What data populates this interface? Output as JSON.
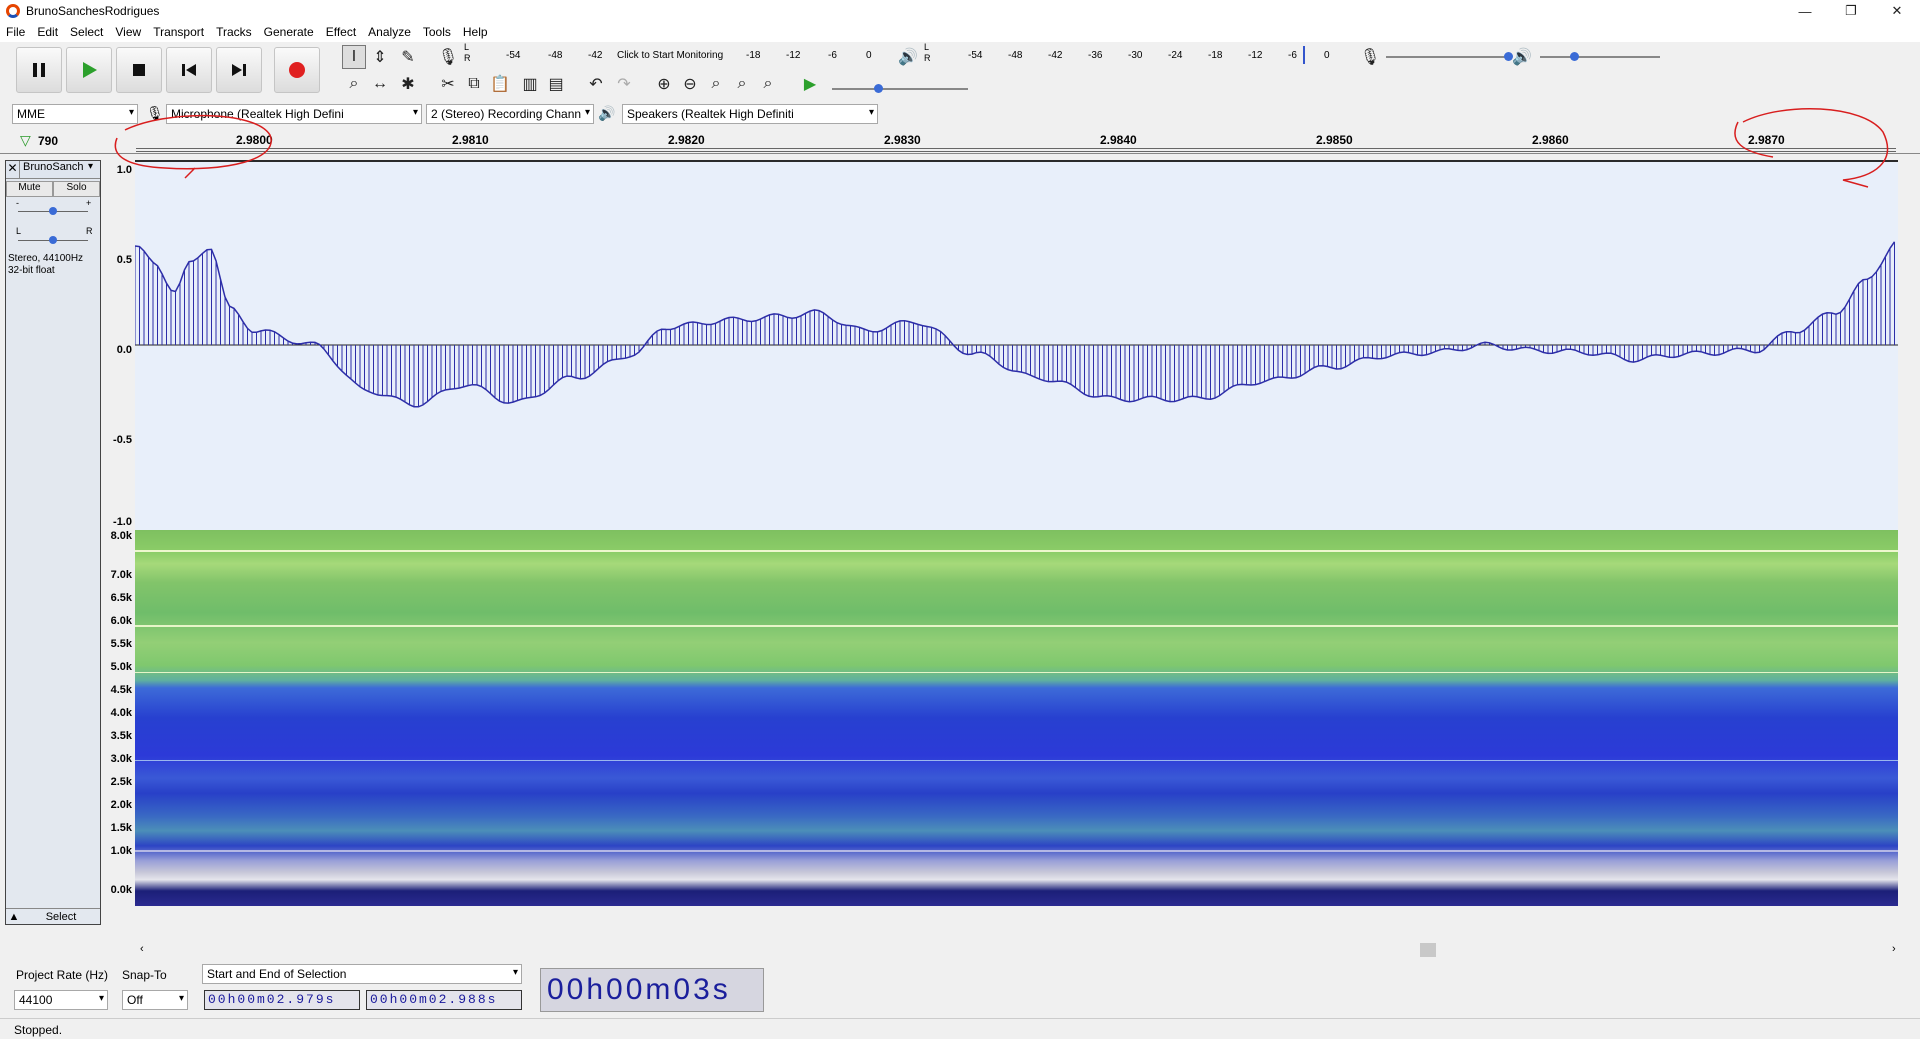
{
  "window": {
    "title": "BrunoSanchesRodrigues",
    "controls": [
      "—",
      "❐",
      "✕"
    ]
  },
  "menu": [
    "File",
    "Edit",
    "Select",
    "View",
    "Transport",
    "Tracks",
    "Generate",
    "Effect",
    "Analyze",
    "Tools",
    "Help"
  ],
  "transport": {
    "pause": "pause-icon",
    "play": "play-icon",
    "stop": "stop-icon",
    "skip_start": "skip-start-icon",
    "skip_end": "skip-end-icon",
    "record": "record-icon"
  },
  "meters": {
    "record_ticks": [
      "-54",
      "-48",
      "-42",
      "-18",
      "-12",
      "-6",
      "0"
    ],
    "monitor_label": "Click to Start Monitoring",
    "play_ticks": [
      "-54",
      "-48",
      "-42",
      "-36",
      "-30",
      "-24",
      "-18",
      "-12",
      "-6",
      "0"
    ],
    "lr": [
      "L",
      "R"
    ]
  },
  "devices": {
    "host": "MME",
    "mic": "Microphone (Realtek High Defini",
    "channels": "2 (Stereo) Recording Chann",
    "speakers": "Speakers (Realtek High Definiti"
  },
  "ruler": {
    "start_value": "790",
    "labels": [
      "2.9800",
      "2.9810",
      "2.9820",
      "2.9830",
      "2.9840",
      "2.9850",
      "2.9860",
      "2.9870"
    ]
  },
  "track": {
    "name": "BrunoSanch",
    "mute": "Mute",
    "solo": "Solo",
    "gain_minus": "-",
    "gain_plus": "+",
    "pan_l": "L",
    "pan_r": "R",
    "info_line1": "Stereo, 44100Hz",
    "info_line2": "32-bit float",
    "select": "Select"
  },
  "wave_scale": [
    "1.0",
    "0.5",
    "0.0",
    "-0.5",
    "-1.0"
  ],
  "spec_scale": [
    "8.0k",
    "7.0k",
    "6.5k",
    "6.0k",
    "5.5k",
    "5.0k",
    "4.5k",
    "4.0k",
    "3.5k",
    "3.0k",
    "2.5k",
    "2.0k",
    "1.5k",
    "1.0k",
    "0.0k"
  ],
  "bottom": {
    "project_rate_label": "Project Rate (Hz)",
    "project_rate": "44100",
    "snap_label": "Snap-To",
    "snap_value": "Off",
    "selection_mode": "Start and End of Selection",
    "sel_start": "00h00m02.979s",
    "sel_end": "00h00m02.988s",
    "audio_pos": "00h00m03s"
  },
  "status": "Stopped."
}
